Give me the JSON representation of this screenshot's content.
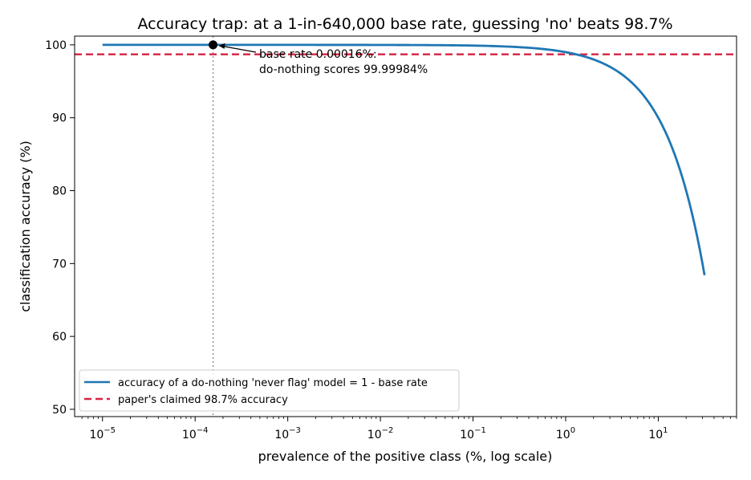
{
  "chart_data": {
    "type": "line",
    "title": "Accuracy trap: at a 1-in-640,000 base rate, guessing 'no' beats 98.7%",
    "xlabel": "prevalence of the positive class (%, log scale)",
    "ylabel": "classification accuracy (%)",
    "x_scale": "log",
    "xlim": [
      5e-06,
      70
    ],
    "ylim": [
      49,
      101.2
    ],
    "x_ticks": [
      {
        "value": 1e-05,
        "base": "10",
        "exp": "−5"
      },
      {
        "value": 0.0001,
        "base": "10",
        "exp": "−4"
      },
      {
        "value": 0.001,
        "base": "10",
        "exp": "−3"
      },
      {
        "value": 0.01,
        "base": "10",
        "exp": "−2"
      },
      {
        "value": 0.1,
        "base": "10",
        "exp": "−1"
      },
      {
        "value": 1,
        "base": "10",
        "exp": "0"
      },
      {
        "value": 10,
        "base": "10",
        "exp": "1"
      }
    ],
    "y_ticks": [
      {
        "value": 50,
        "label": "50"
      },
      {
        "value": 60,
        "label": "60"
      },
      {
        "value": 70,
        "label": "70"
      },
      {
        "value": 80,
        "label": "80"
      },
      {
        "value": 90,
        "label": "90"
      },
      {
        "value": 100,
        "label": "100"
      }
    ],
    "grid": false,
    "legend_position": "lower-left",
    "series": [
      {
        "name": "accuracy of a do-nothing 'never flag' model = 1 - base rate",
        "color": "#1f77b4",
        "style": "solid",
        "x": [
          1e-05,
          0.0001,
          0.001,
          0.01,
          0.1,
          0.5,
          1,
          2,
          3,
          5,
          7,
          10,
          13,
          16,
          20,
          24,
          28,
          31.6
        ],
        "y": [
          99.99999,
          99.9999,
          99.999,
          99.99,
          99.9,
          99.5,
          99,
          98,
          97,
          95,
          93,
          90,
          87,
          84,
          80,
          76,
          72,
          68.4
        ]
      },
      {
        "name": "paper's claimed 98.7% accuracy",
        "color": "#d62242",
        "style": "dashed",
        "y_constant": 98.7
      }
    ],
    "marker": {
      "x": 0.00015625,
      "y": 99.99984,
      "color": "#000000"
    },
    "vline": {
      "x": 0.00015625,
      "color": "#888888",
      "style": "dotted"
    },
    "annotation": {
      "lines": [
        "base rate 0.00016%:",
        "do-nothing scores 99.99984%"
      ],
      "arrow": true
    }
  }
}
